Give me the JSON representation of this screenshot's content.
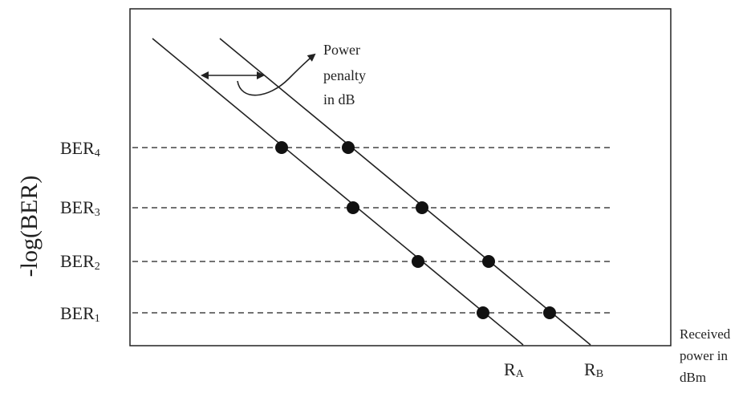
{
  "y_axis_label": "-log(BER)",
  "x_axis_label_lines": [
    "Received",
    "power in",
    "dBm"
  ],
  "annotation_lines": [
    "Power",
    "penalty",
    "in dB"
  ],
  "ber_levels": [
    {
      "base": "BER",
      "sub": "4"
    },
    {
      "base": "BER",
      "sub": "3"
    },
    {
      "base": "BER",
      "sub": "2"
    },
    {
      "base": "BER",
      "sub": "1"
    }
  ],
  "curves": [
    {
      "base": "R",
      "sub": "A"
    },
    {
      "base": "R",
      "sub": "B"
    }
  ],
  "colors": {
    "ink": "#222222",
    "dash": "#444444",
    "background": "#ffffff"
  }
}
